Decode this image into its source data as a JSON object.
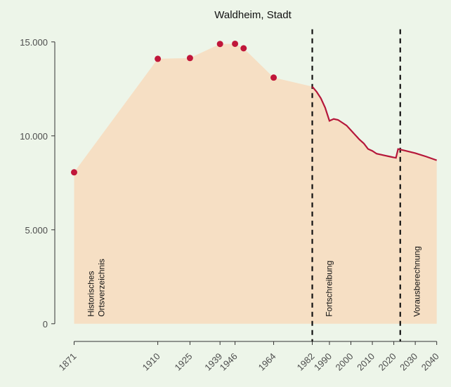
{
  "chart_data": {
    "type": "area-line",
    "title": "Waldheim, Stadt",
    "series": [
      {
        "x": [
          1871,
          1910,
          1925,
          1939,
          1946,
          1950,
          1964
        ],
        "values": [
          8060,
          14100,
          14140,
          14890,
          14900,
          14660,
          13100
        ],
        "color": "#c0163a"
      },
      {
        "x": [
          1982,
          1984,
          1986,
          1988,
          1990,
          1992,
          1994,
          1996,
          1998,
          2000,
          2002,
          2004,
          2006,
          2008,
          2010,
          2012,
          2014,
          2016,
          2018,
          2020,
          2021,
          2022,
          2025,
          2030,
          2035,
          2040
        ],
        "values": [
          12620,
          12350,
          12000,
          11500,
          10800,
          10900,
          10850,
          10700,
          10550,
          10300,
          10050,
          9800,
          9600,
          9300,
          9200,
          9050,
          9000,
          8950,
          8900,
          8850,
          8830,
          9300,
          9220,
          9080,
          8900,
          8700
        ],
        "color": "#b5173a"
      }
    ],
    "area_color": "#f6dfc4",
    "vlines": [
      1982,
      2023
    ],
    "annotations": [
      {
        "x": 1871,
        "lines": [
          "Historisches",
          "Ortsverzeichnis"
        ]
      },
      {
        "x": 1982,
        "lines": [
          "Fortschreibung"
        ]
      },
      {
        "x": 2023,
        "lines": [
          "Vorausberechnung"
        ]
      }
    ],
    "xlim": [
      1862,
      2046
    ],
    "xticks": [
      1871,
      1910,
      1925,
      1939,
      1946,
      1964,
      1982,
      1990,
      2000,
      2010,
      2020,
      2030,
      2040
    ],
    "ylim": [
      -1500,
      15700
    ],
    "yticks": [
      0,
      {
        "value": 5000,
        "label": "5.000"
      },
      {
        "value": 10000,
        "label": "10.000"
      },
      {
        "value": 15000,
        "label": "15.000"
      }
    ]
  }
}
